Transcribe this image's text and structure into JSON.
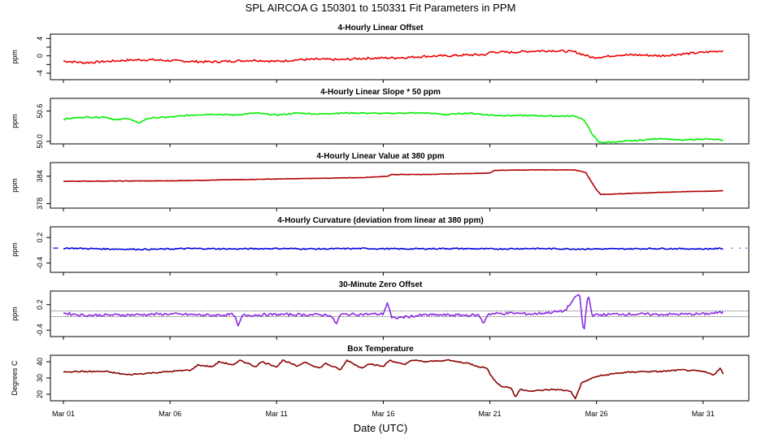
{
  "chart_data": {
    "type": "line",
    "title": "SPL   AIRCOA G   150301 to 150331   Fit Parameters in PPM",
    "xlabel": "Date (UTC)",
    "x_domain": [
      0,
      31
    ],
    "x_ticks": [
      {
        "day": 0,
        "label": "Mar 01"
      },
      {
        "day": 5,
        "label": "Mar 06"
      },
      {
        "day": 10,
        "label": "Mar 11"
      },
      {
        "day": 15,
        "label": "Mar 16"
      },
      {
        "day": 20,
        "label": "Mar 21"
      },
      {
        "day": 25,
        "label": "Mar 26"
      },
      {
        "day": 30,
        "label": "Mar 31"
      }
    ],
    "panels": [
      {
        "id": "offset",
        "title": "4-Hourly Linear Offset",
        "ylabel": "ppm",
        "color": "#ee0000",
        "ylim": [
          -5.5,
          5
        ],
        "yticks": [
          {
            "v": 4,
            "label": "4"
          },
          {
            "v": 2,
            "label": ""
          },
          {
            "v": 0,
            "label": "0"
          },
          {
            "v": -2,
            "label": ""
          },
          {
            "v": -4,
            "label": "-4"
          }
        ],
        "series": [
          [
            0,
            -1.2
          ],
          [
            1,
            -1.6
          ],
          [
            2,
            -1.3
          ],
          [
            3,
            -1.0
          ],
          [
            4,
            -0.9
          ],
          [
            5,
            -1.1
          ],
          [
            6,
            -1.3
          ],
          [
            7,
            -1.4
          ],
          [
            8,
            -1.2
          ],
          [
            9,
            -1.0
          ],
          [
            10,
            -1.3
          ],
          [
            11,
            -0.9
          ],
          [
            12,
            -0.8
          ],
          [
            13,
            -0.9
          ],
          [
            14,
            -0.6
          ],
          [
            15,
            -0.5
          ],
          [
            16,
            -0.4
          ],
          [
            17,
            -0.1
          ],
          [
            18,
            0.0
          ],
          [
            19,
            0.2
          ],
          [
            19.9,
            0.3
          ],
          [
            20,
            0.9
          ],
          [
            21,
            0.8
          ],
          [
            22,
            1.1
          ],
          [
            23,
            1.2
          ],
          [
            24,
            0.9
          ],
          [
            24.8,
            -0.4
          ],
          [
            25.4,
            -0.2
          ],
          [
            26,
            0.2
          ],
          [
            27,
            0.2
          ],
          [
            28,
            0.0
          ],
          [
            29,
            0.4
          ],
          [
            30,
            0.8
          ],
          [
            31,
            1.2
          ]
        ]
      },
      {
        "id": "slope",
        "title": "4-Hourly Linear Slope * 50 ppm",
        "ylabel": "ppm",
        "color": "#00ee00",
        "ylim": [
          49.95,
          50.85
        ],
        "yticks": [
          {
            "v": 50.6,
            "label": "50.6"
          },
          {
            "v": 50.0,
            "label": "50.0"
          }
        ],
        "series": [
          [
            0,
            50.44
          ],
          [
            1,
            50.48
          ],
          [
            2,
            50.48
          ],
          [
            2.5,
            50.42
          ],
          [
            3,
            50.46
          ],
          [
            3.5,
            50.36
          ],
          [
            4,
            50.46
          ],
          [
            5,
            50.48
          ],
          [
            6,
            50.52
          ],
          [
            7,
            50.54
          ],
          [
            8,
            50.52
          ],
          [
            9,
            50.56
          ],
          [
            10,
            50.52
          ],
          [
            11,
            50.56
          ],
          [
            12,
            50.54
          ],
          [
            13,
            50.56
          ],
          [
            14,
            50.56
          ],
          [
            15,
            50.55
          ],
          [
            16,
            50.56
          ],
          [
            17,
            50.56
          ],
          [
            18,
            50.53
          ],
          [
            19,
            50.56
          ],
          [
            20,
            50.52
          ],
          [
            21,
            50.51
          ],
          [
            22,
            50.51
          ],
          [
            23,
            50.5
          ],
          [
            24,
            50.5
          ],
          [
            24.4,
            50.43
          ],
          [
            24.8,
            50.15
          ],
          [
            25.1,
            49.98
          ],
          [
            26,
            49.99
          ],
          [
            27,
            50.02
          ],
          [
            28,
            50.06
          ],
          [
            29,
            50.02
          ],
          [
            30,
            50.05
          ],
          [
            31,
            50.02
          ]
        ]
      },
      {
        "id": "value380",
        "title": "4-Hourly Linear Value at 380 ppm",
        "ylabel": "ppm",
        "color": "#b00000",
        "ylim": [
          377,
          387
        ],
        "yticks": [
          {
            "v": 384,
            "label": "384"
          },
          {
            "v": 378,
            "label": "378"
          }
        ],
        "series": [
          [
            0,
            382.9
          ],
          [
            5,
            383.0
          ],
          [
            10,
            383.4
          ],
          [
            14,
            383.7
          ],
          [
            15.2,
            384.0
          ],
          [
            15.4,
            384.4
          ],
          [
            17,
            384.4
          ],
          [
            20,
            384.7
          ],
          [
            20.2,
            385.3
          ],
          [
            22,
            385.4
          ],
          [
            24,
            385.4
          ],
          [
            24.5,
            384.8
          ],
          [
            25,
            381.0
          ],
          [
            25.2,
            380.0
          ],
          [
            27,
            380.3
          ],
          [
            29,
            380.6
          ],
          [
            31,
            380.8
          ]
        ]
      },
      {
        "id": "curvature",
        "title": "4-Hourly Curvature (deviation from linear at 380 ppm)",
        "ylabel": "ppm",
        "color": "#0000dd",
        "ylim": [
          -0.62,
          0.45
        ],
        "yticks": [
          {
            "v": 0.2,
            "label": "0.2"
          },
          {
            "v": -0.4,
            "label": "-0.4"
          }
        ],
        "series": [
          [
            0,
            -0.05
          ],
          [
            2,
            -0.07
          ],
          [
            4,
            -0.08
          ],
          [
            6,
            -0.06
          ],
          [
            8,
            -0.07
          ],
          [
            10,
            -0.06
          ],
          [
            12,
            -0.07
          ],
          [
            14,
            -0.06
          ],
          [
            16,
            -0.07
          ],
          [
            18,
            -0.06
          ],
          [
            20,
            -0.07
          ],
          [
            22,
            -0.06
          ],
          [
            24,
            -0.07
          ],
          [
            26,
            -0.07
          ],
          [
            28,
            -0.06
          ],
          [
            30,
            -0.07
          ],
          [
            31,
            -0.06
          ]
        ]
      },
      {
        "id": "zero30",
        "title": "30-Minute Zero Offset",
        "ylabel": "ppm",
        "color": "#8a2be2",
        "ylim": [
          -0.55,
          0.52
        ],
        "reflines": [
          0.05,
          -0.08
        ],
        "yticks": [
          {
            "v": 0.2,
            "label": "0.2"
          },
          {
            "v": -0.4,
            "label": "-0.4"
          }
        ],
        "series": [
          [
            0,
            0.0
          ],
          [
            1,
            -0.05
          ],
          [
            3,
            -0.04
          ],
          [
            5,
            -0.02
          ],
          [
            7,
            -0.05
          ],
          [
            8,
            -0.03
          ],
          [
            8.2,
            -0.32
          ],
          [
            8.4,
            -0.05
          ],
          [
            10,
            -0.03
          ],
          [
            12.5,
            -0.04
          ],
          [
            12.8,
            -0.25
          ],
          [
            13,
            -0.03
          ],
          [
            15,
            -0.02
          ],
          [
            15.2,
            0.26
          ],
          [
            15.4,
            -0.12
          ],
          [
            17,
            -0.04
          ],
          [
            19.5,
            -0.05
          ],
          [
            19.7,
            -0.25
          ],
          [
            19.9,
            -0.02
          ],
          [
            21,
            0.0
          ],
          [
            22,
            -0.02
          ],
          [
            23.5,
            0.05
          ],
          [
            24.2,
            0.48
          ],
          [
            24.4,
            -0.52
          ],
          [
            24.6,
            0.48
          ],
          [
            24.8,
            -0.05
          ],
          [
            26,
            -0.02
          ],
          [
            28,
            -0.03
          ],
          [
            30,
            -0.02
          ],
          [
            31,
            0.02
          ]
        ]
      },
      {
        "id": "boxtemp",
        "title": "Box Temperature",
        "ylabel": "Degrees C",
        "color": "#8b0000",
        "ylim": [
          16,
          44
        ],
        "yticks": [
          {
            "v": 40,
            "label": "40"
          },
          {
            "v": 30,
            "label": "30"
          },
          {
            "v": 20,
            "label": "20"
          }
        ],
        "series": [
          [
            0,
            34
          ],
          [
            1,
            34
          ],
          [
            2,
            34
          ],
          [
            3,
            32
          ],
          [
            4,
            33
          ],
          [
            5,
            34
          ],
          [
            6,
            35
          ],
          [
            6.3,
            38
          ],
          [
            7,
            37
          ],
          [
            7.3,
            40
          ],
          [
            8,
            38
          ],
          [
            8.3,
            41
          ],
          [
            9,
            37
          ],
          [
            9.3,
            40
          ],
          [
            10,
            37
          ],
          [
            10.3,
            41
          ],
          [
            11,
            37
          ],
          [
            11.3,
            40
          ],
          [
            12,
            36
          ],
          [
            12.3,
            39
          ],
          [
            13,
            35
          ],
          [
            13.3,
            41
          ],
          [
            14,
            36
          ],
          [
            14.3,
            39
          ],
          [
            15,
            37
          ],
          [
            15.3,
            41
          ],
          [
            16,
            38
          ],
          [
            16.3,
            41
          ],
          [
            17,
            40
          ],
          [
            18,
            41
          ],
          [
            19,
            39
          ],
          [
            19.5,
            37
          ],
          [
            19.9,
            36
          ],
          [
            20,
            32
          ],
          [
            20.5,
            25
          ],
          [
            21,
            24
          ],
          [
            21.2,
            18
          ],
          [
            21.4,
            23
          ],
          [
            22,
            22
          ],
          [
            23,
            23
          ],
          [
            23.8,
            22
          ],
          [
            24,
            17
          ],
          [
            24.3,
            27
          ],
          [
            25,
            31
          ],
          [
            26,
            33
          ],
          [
            27,
            34
          ],
          [
            28,
            34
          ],
          [
            29,
            35
          ],
          [
            30,
            34
          ],
          [
            30.5,
            32
          ],
          [
            30.8,
            36
          ],
          [
            31,
            31
          ]
        ]
      }
    ]
  }
}
